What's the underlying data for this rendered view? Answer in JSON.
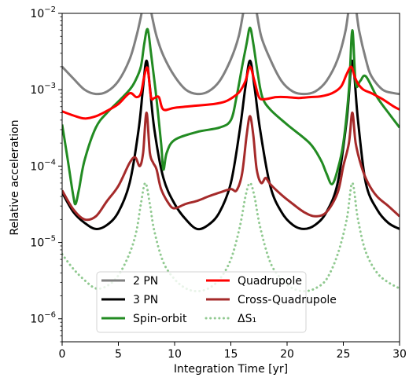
{
  "chart_data": {
    "type": "line",
    "xlabel": "Integration Time [yr]",
    "ylabel": "Relative acceleration",
    "xlim": [
      0,
      30
    ],
    "ylim": [
      5e-07,
      0.01
    ],
    "yscale": "log",
    "grid": false,
    "legend_position": "bottom-center",
    "legend_columns": 2,
    "xticks": [
      0,
      5,
      10,
      15,
      20,
      25,
      30
    ],
    "xtick_labels": [
      "0",
      "5",
      "10",
      "15",
      "20",
      "25",
      "30"
    ],
    "yticks": [
      1e-06,
      1e-05,
      0.0001,
      0.001,
      0.01
    ],
    "ytick_labels": [
      {
        "base": "10",
        "exp": "−6"
      },
      {
        "base": "10",
        "exp": "−5"
      },
      {
        "base": "10",
        "exp": "−4"
      },
      {
        "base": "10",
        "exp": "−3"
      },
      {
        "base": "10",
        "exp": "−2"
      }
    ],
    "series": [
      {
        "name": "2 PN",
        "color": "#808080",
        "style": "solid",
        "x": [
          0,
          1,
          2,
          3,
          4,
          5,
          6,
          6.6,
          7,
          7.5,
          8,
          8.4,
          9,
          10,
          11,
          12,
          13,
          14,
          15,
          15.7,
          16.2,
          16.7,
          17.2,
          17.7,
          18.5,
          19.5,
          20.5,
          21.5,
          22.5,
          23.5,
          24.5,
          25.2,
          25.8,
          26.4,
          27,
          27.5,
          28.5,
          29.5,
          30
        ],
        "y": [
          0.002,
          0.0014,
          0.001,
          0.00088,
          0.00095,
          0.0013,
          0.0025,
          0.005,
          0.009,
          0.02,
          0.009,
          0.005,
          0.0028,
          0.0015,
          0.001,
          0.00088,
          0.00095,
          0.0013,
          0.0025,
          0.005,
          0.012,
          0.02,
          0.012,
          0.005,
          0.0025,
          0.0013,
          0.00095,
          0.00088,
          0.00095,
          0.0013,
          0.0025,
          0.006,
          0.02,
          0.006,
          0.0025,
          0.0015,
          0.001,
          0.0009,
          0.00088
        ]
      },
      {
        "name": "3 PN",
        "color": "#000000",
        "style": "solid",
        "x": [
          0,
          1,
          2,
          3,
          4,
          5,
          6,
          6.8,
          7.2,
          7.5,
          7.8,
          8.2,
          9,
          10,
          11,
          12,
          13,
          14,
          15,
          15.8,
          16.3,
          16.7,
          17.1,
          17.6,
          18.5,
          19.5,
          20.5,
          21.5,
          22.5,
          23.5,
          24.5,
          25.3,
          25.8,
          26.3,
          27,
          28,
          29,
          30
        ],
        "y": [
          4.5e-05,
          2.5e-05,
          1.8e-05,
          1.5e-05,
          1.7e-05,
          2.5e-05,
          6e-05,
          0.0003,
          0.0011,
          0.0024,
          0.0011,
          0.0003,
          7e-05,
          3.2e-05,
          2e-05,
          1.5e-05,
          1.7e-05,
          2.5e-05,
          6e-05,
          0.0003,
          0.0011,
          0.0024,
          0.0011,
          0.0003,
          5.5e-05,
          2.5e-05,
          1.7e-05,
          1.5e-05,
          1.7e-05,
          2.5e-05,
          6e-05,
          0.0004,
          0.0024,
          0.0004,
          6e-05,
          2.7e-05,
          1.8e-05,
          1.5e-05
        ]
      },
      {
        "name": "Spin-orbit",
        "color": "#228b22",
        "style": "solid",
        "x": [
          0,
          0.5,
          1.0,
          1.2,
          1.5,
          2.0,
          3,
          4,
          5,
          6,
          6.5,
          7.0,
          7.3,
          7.6,
          7.9,
          8.3,
          8.8,
          9.0,
          9.3,
          10,
          12,
          14,
          15,
          15.5,
          16.0,
          16.4,
          16.7,
          17.0,
          17.4,
          17.8,
          18.5,
          20,
          22,
          23,
          23.5,
          24.0,
          24.5,
          25.0,
          25.5,
          25.8,
          26.1,
          26.5,
          27,
          28,
          29,
          30
        ],
        "y": [
          0.00035,
          0.00012,
          4e-05,
          3.2e-05,
          5e-05,
          0.00012,
          0.00032,
          0.0005,
          0.0007,
          0.001,
          0.0013,
          0.002,
          0.004,
          0.0062,
          0.003,
          0.001,
          0.0002,
          9e-05,
          0.00015,
          0.00022,
          0.00028,
          0.00032,
          0.0004,
          0.0008,
          0.002,
          0.004,
          0.0065,
          0.004,
          0.0016,
          0.0008,
          0.00055,
          0.00035,
          0.0002,
          0.00012,
          8e-05,
          5.8e-05,
          9e-05,
          0.0002,
          0.001,
          0.006,
          0.0012,
          0.0013,
          0.0015,
          0.0008,
          0.0005,
          0.00032
        ]
      },
      {
        "name": "Quadrupole",
        "color": "#ff0000",
        "style": "solid",
        "x": [
          0,
          1,
          2,
          3,
          4,
          5,
          6,
          6.6,
          7.0,
          7.3,
          7.6,
          7.9,
          8.2,
          8.6,
          9,
          10,
          12,
          13.5,
          14.5,
          15.2,
          15.8,
          16.3,
          16.7,
          17.1,
          17.5,
          18,
          19,
          20,
          21,
          22,
          23,
          24,
          24.8,
          25.3,
          25.7,
          26.0,
          26.3,
          26.8,
          27.5,
          28.5,
          29.5,
          30
        ],
        "y": [
          0.00052,
          0.00046,
          0.00042,
          0.00045,
          0.00053,
          0.00065,
          0.0009,
          0.0008,
          0.0009,
          0.0015,
          0.0019,
          0.0008,
          0.00078,
          0.0008,
          0.00055,
          0.00058,
          0.00062,
          0.00065,
          0.0007,
          0.0008,
          0.00095,
          0.0013,
          0.002,
          0.0013,
          0.0008,
          0.00075,
          0.0008,
          0.0008,
          0.00078,
          0.0008,
          0.00082,
          0.0009,
          0.0011,
          0.0016,
          0.002,
          0.0015,
          0.0012,
          0.001,
          0.0009,
          0.00075,
          0.0006,
          0.00055
        ]
      },
      {
        "name": "Cross-Quadrupole",
        "color": "#a52a2a",
        "style": "solid",
        "x": [
          0,
          1,
          2,
          3,
          4,
          5,
          6,
          6.5,
          6.9,
          7.2,
          7.5,
          7.8,
          8.1,
          8.4,
          8.8,
          9.5,
          10,
          11,
          12,
          13,
          14,
          15,
          15.5,
          16,
          16.4,
          16.7,
          17.0,
          17.3,
          17.7,
          18.1,
          18.5,
          19.5,
          20.5,
          21.5,
          22.5,
          23.5,
          24.5,
          25,
          25.5,
          25.8,
          26.1,
          26.6,
          27.2,
          28,
          29,
          30
        ],
        "y": [
          4.8e-05,
          2.7e-05,
          2e-05,
          2.2e-05,
          3.5e-05,
          5.5e-05,
          0.00011,
          0.00013,
          0.0001,
          0.00015,
          0.0005,
          0.00015,
          0.00011,
          9e-05,
          5e-05,
          3.2e-05,
          2.8e-05,
          3.2e-05,
          3.5e-05,
          4e-05,
          4.5e-05,
          5e-05,
          4.8e-05,
          8e-05,
          0.00025,
          0.00045,
          0.00025,
          9e-05,
          6e-05,
          7e-05,
          5.8e-05,
          4.2e-05,
          3.2e-05,
          2.5e-05,
          2.2e-05,
          2.5e-05,
          4.5e-05,
          0.0001,
          0.0002,
          0.0005,
          0.0002,
          0.0001,
          6e-05,
          4e-05,
          3e-05,
          2.2e-05
        ]
      },
      {
        "name": "ΔS₁",
        "color": "#90c990",
        "style": "dotted",
        "x": [
          0,
          1,
          2,
          3,
          4,
          5,
          6,
          6.6,
          7.0,
          7.4,
          7.8,
          8.2,
          9,
          10,
          11,
          12,
          13,
          14,
          15,
          15.8,
          16.3,
          16.7,
          17.1,
          17.6,
          18.5,
          19.5,
          20.5,
          21.5,
          22.5,
          23.5,
          24.5,
          25.3,
          25.8,
          26.3,
          27,
          28,
          29,
          30
        ],
        "y": [
          7e-06,
          4.5e-06,
          3.2e-06,
          2.5e-06,
          2.7e-06,
          3.7e-06,
          7.2e-06,
          1.4e-05,
          3.2e-05,
          6e-05,
          3.2e-05,
          1.4e-05,
          5.5e-06,
          3.3e-06,
          2.5e-06,
          2.3e-06,
          2.5e-06,
          3.3e-06,
          6e-06,
          1.6e-05,
          4e-05,
          6e-05,
          4e-05,
          1.6e-05,
          5.5e-06,
          3.3e-06,
          2.5e-06,
          2.3e-06,
          2.5e-06,
          3.3e-06,
          7e-06,
          2e-05,
          6e-05,
          2e-05,
          7.5e-06,
          4e-06,
          3e-06,
          2.5e-06
        ]
      }
    ],
    "legend": [
      {
        "label": "2 PN",
        "color": "#808080",
        "style": "solid"
      },
      {
        "label": "Quadrupole",
        "color": "#ff0000",
        "style": "solid"
      },
      {
        "label": "3 PN",
        "color": "#000000",
        "style": "solid"
      },
      {
        "label": "Cross-Quadrupole",
        "color": "#a52a2a",
        "style": "solid"
      },
      {
        "label": "Spin-orbit",
        "color": "#228b22",
        "style": "solid"
      },
      {
        "label": "ΔS₁",
        "color": "#90c990",
        "style": "dotted"
      }
    ]
  }
}
